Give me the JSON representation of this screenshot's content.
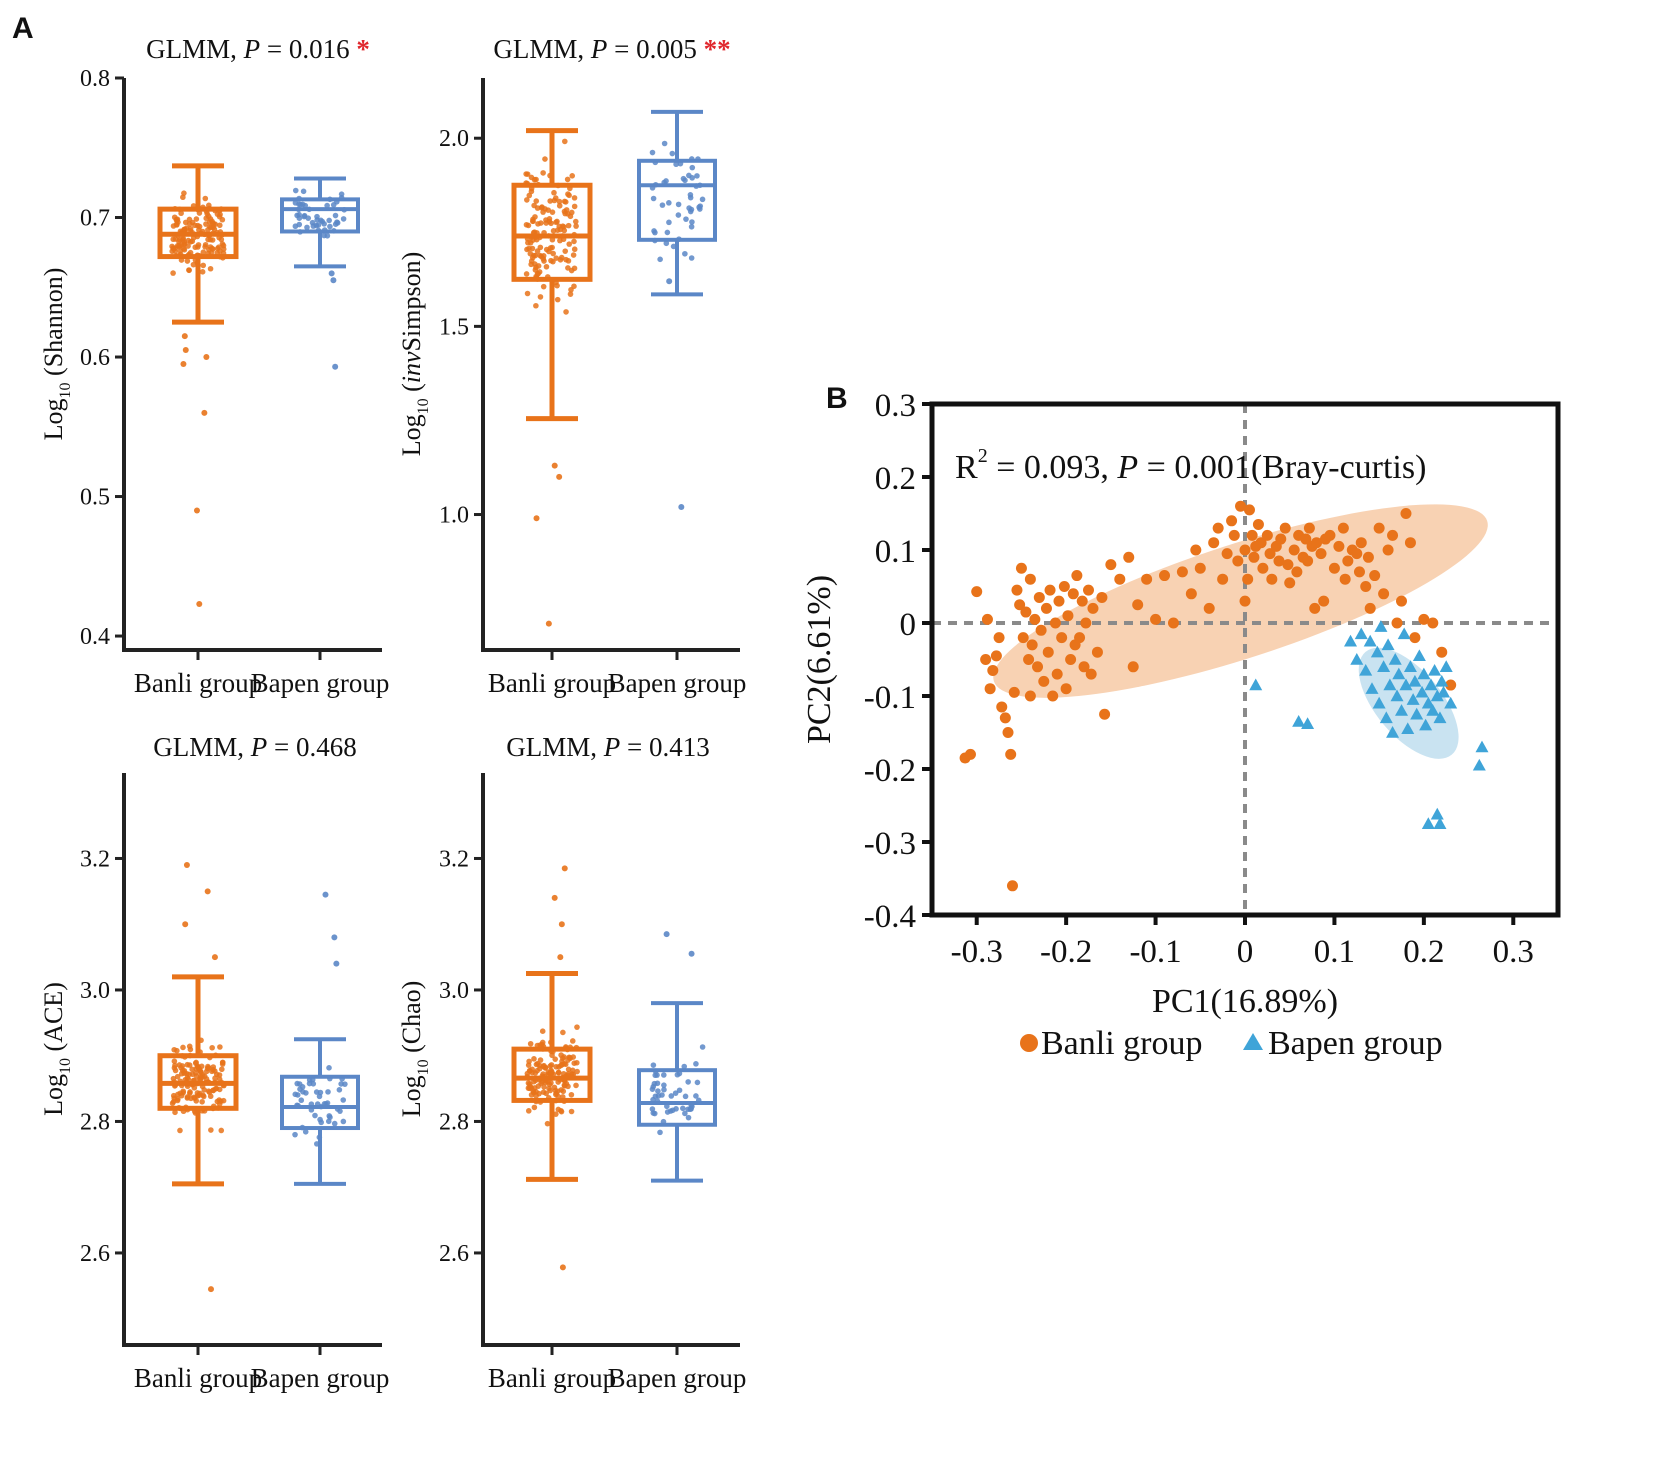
{
  "panel_labels": {
    "a": "A",
    "b": "B"
  },
  "colors": {
    "banli": "#e8731a",
    "bapen": "#5b87c7",
    "bapen_pcoa": "#3fa4d8",
    "sig_star": "#e0262c",
    "axis": "#222222",
    "ref_line": "#8a8a8a",
    "ellipse_banli": "#f6c7a0",
    "ellipse_bapen": "#bcdcee"
  },
  "chart_data": [
    {
      "type": "box",
      "id": "shannon",
      "title_prefix": "GLMM, ",
      "title_p": "P",
      "title_value": " = 0.016",
      "significance": "*",
      "ylabel_main": "Log",
      "ylabel_sub": "10",
      "ylabel_rest": " (Shannon)",
      "ylabel_italic": "",
      "ylabel_tail": "",
      "categories": [
        "Banli group",
        "Bapen group"
      ],
      "ylim": [
        0.39,
        0.8
      ],
      "yticks": [
        0.4,
        0.5,
        0.6,
        0.7,
        0.8
      ],
      "ytick_labels": [
        "0.4",
        "0.5",
        "0.6",
        "0.7",
        "0.8"
      ],
      "boxes": [
        {
          "group": "Banli group",
          "whisker_low": 0.625,
          "q1": 0.672,
          "median": 0.688,
          "q3": 0.706,
          "whisker_high": 0.737,
          "outliers": [
            0.49,
            0.423,
            0.56,
            0.595,
            0.6,
            0.605,
            0.615
          ]
        },
        {
          "group": "Bapen group",
          "whisker_low": 0.665,
          "q1": 0.69,
          "median": 0.706,
          "q3": 0.713,
          "whisker_high": 0.728,
          "outliers": [
            0.593,
            0.655,
            0.66
          ]
        }
      ]
    },
    {
      "type": "box",
      "id": "invsimpson",
      "title_prefix": "GLMM, ",
      "title_p": "P",
      "title_value": " = 0.005",
      "significance": "**",
      "ylabel_main": "Log",
      "ylabel_sub": "10",
      "ylabel_rest": " (",
      "ylabel_italic": "inv",
      "ylabel_tail": "Simpson)",
      "categories": [
        "Banli group",
        "Bapen group"
      ],
      "ylim": [
        0.64,
        2.16
      ],
      "yticks": [
        1.0,
        1.5,
        2.0
      ],
      "ytick_labels": [
        "1.0",
        "1.5",
        "2.0"
      ],
      "boxes": [
        {
          "group": "Banli group",
          "whisker_low": 1.255,
          "q1": 1.625,
          "median": 1.74,
          "q3": 1.875,
          "whisker_high": 2.02,
          "outliers": [
            0.71,
            0.99,
            1.1,
            1.13
          ]
        },
        {
          "group": "Bapen group",
          "whisker_low": 1.585,
          "q1": 1.73,
          "median": 1.875,
          "q3": 1.94,
          "whisker_high": 2.07,
          "outliers": [
            1.02,
            1.62
          ]
        }
      ]
    },
    {
      "type": "box",
      "id": "ace",
      "title_prefix": "GLMM, ",
      "title_p": "P",
      "title_value": " = 0.468",
      "significance": "",
      "ylabel_main": "Log",
      "ylabel_sub": "10",
      "ylabel_rest": " (ACE)",
      "ylabel_italic": "",
      "ylabel_tail": "",
      "categories": [
        "Banli group",
        "Bapen group"
      ],
      "ylim": [
        2.46,
        3.33
      ],
      "yticks": [
        2.6,
        2.8,
        3.0,
        3.2
      ],
      "ytick_labels": [
        "2.6",
        "2.8",
        "3.0",
        "3.2"
      ],
      "boxes": [
        {
          "group": "Banli group",
          "whisker_low": 2.705,
          "q1": 2.82,
          "median": 2.858,
          "q3": 2.9,
          "whisker_high": 3.02,
          "outliers": [
            2.545,
            3.05,
            3.1,
            3.15,
            3.19
          ]
        },
        {
          "group": "Bapen group",
          "whisker_low": 2.705,
          "q1": 2.79,
          "median": 2.822,
          "q3": 2.868,
          "whisker_high": 2.925,
          "outliers": [
            3.04,
            3.08,
            3.145
          ]
        }
      ]
    },
    {
      "type": "box",
      "id": "chao",
      "title_prefix": "GLMM, ",
      "title_p": "P",
      "title_value": " = 0.413",
      "significance": "",
      "ylabel_main": "Log",
      "ylabel_sub": "10",
      "ylabel_rest": " (Chao)",
      "ylabel_italic": "",
      "ylabel_tail": "",
      "categories": [
        "Banli group",
        "Bapen group"
      ],
      "ylim": [
        2.46,
        3.33
      ],
      "yticks": [
        2.6,
        2.8,
        3.0,
        3.2
      ],
      "ytick_labels": [
        "2.6",
        "2.8",
        "3.0",
        "3.2"
      ],
      "boxes": [
        {
          "group": "Banli group",
          "whisker_low": 2.712,
          "q1": 2.832,
          "median": 2.866,
          "q3": 2.91,
          "whisker_high": 3.025,
          "outliers": [
            2.578,
            3.05,
            3.1,
            3.14,
            3.185
          ]
        },
        {
          "group": "Bapen group",
          "whisker_low": 2.71,
          "q1": 2.795,
          "median": 2.828,
          "q3": 2.878,
          "whisker_high": 2.98,
          "outliers": [
            3.055,
            3.085
          ]
        }
      ]
    },
    {
      "type": "scatter",
      "id": "pcoa",
      "annotation_r": "R",
      "annotation_r_sup": "2",
      "annotation_mid": " = 0.093, ",
      "annotation_p": "P",
      "annotation_tail": " = 0.001(Bray-curtis)",
      "xlabel": "PC1(16.89%)",
      "ylabel": "PC2(6.61%)",
      "xlim": [
        -0.35,
        0.35
      ],
      "ylim": [
        -0.4,
        0.3
      ],
      "xticks": [
        -0.3,
        -0.2,
        -0.1,
        0,
        0.1,
        0.2,
        0.3
      ],
      "xtick_labels": [
        "-0.3",
        "-0.2",
        "-0.1",
        "0",
        "0.1",
        "0.2",
        "0.3"
      ],
      "yticks": [
        -0.4,
        -0.3,
        -0.2,
        -0.1,
        0,
        0.1,
        0.2,
        0.3
      ],
      "ytick_labels": [
        "-0.4",
        "-0.3",
        "-0.2",
        "-0.1",
        "0",
        "0.1",
        "0.2",
        "0.3"
      ],
      "legend": [
        {
          "marker": "circle",
          "label": "Banli group"
        },
        {
          "marker": "triangle",
          "label": "Bapen group"
        }
      ],
      "ellipses": [
        {
          "group": "Banli group",
          "cx": -0.005,
          "cy": 0.03,
          "rx": 0.29,
          "ry": 0.078,
          "angle_deg": 18
        },
        {
          "group": "Bapen group",
          "cx": 0.183,
          "cy": -0.11,
          "rx": 0.075,
          "ry": 0.045,
          "angle_deg": -50
        }
      ],
      "series": [
        {
          "name": "Banli group",
          "marker": "circle",
          "points": [
            [
              -0.313,
              -0.185
            ],
            [
              -0.307,
              -0.18
            ],
            [
              -0.3,
              0.043
            ],
            [
              -0.288,
              0.005
            ],
            [
              -0.29,
              -0.05
            ],
            [
              -0.285,
              -0.09
            ],
            [
              -0.282,
              -0.065
            ],
            [
              -0.278,
              -0.045
            ],
            [
              -0.275,
              -0.02
            ],
            [
              -0.272,
              -0.115
            ],
            [
              -0.268,
              -0.13
            ],
            [
              -0.265,
              -0.15
            ],
            [
              -0.262,
              -0.18
            ],
            [
              -0.26,
              -0.36
            ],
            [
              -0.258,
              -0.095
            ],
            [
              -0.255,
              0.045
            ],
            [
              -0.252,
              0.025
            ],
            [
              -0.25,
              0.075
            ],
            [
              -0.248,
              -0.02
            ],
            [
              -0.245,
              0.015
            ],
            [
              -0.242,
              -0.05
            ],
            [
              -0.24,
              0.06
            ],
            [
              -0.238,
              -0.03
            ],
            [
              -0.235,
              0.005
            ],
            [
              -0.232,
              -0.06
            ],
            [
              -0.23,
              0.035
            ],
            [
              -0.228,
              -0.01
            ],
            [
              -0.225,
              -0.08
            ],
            [
              -0.222,
              0.02
            ],
            [
              -0.22,
              -0.04
            ],
            [
              -0.218,
              0.045
            ],
            [
              -0.215,
              -0.1
            ],
            [
              -0.212,
              0.0
            ],
            [
              -0.21,
              -0.07
            ],
            [
              -0.208,
              0.03
            ],
            [
              -0.205,
              -0.02
            ],
            [
              -0.202,
              0.05
            ],
            [
              -0.2,
              -0.09
            ],
            [
              -0.198,
              0.01
            ],
            [
              -0.195,
              -0.05
            ],
            [
              -0.192,
              0.04
            ],
            [
              -0.19,
              -0.03
            ],
            [
              -0.188,
              0.065
            ],
            [
              -0.185,
              -0.02
            ],
            [
              -0.182,
              0.03
            ],
            [
              -0.18,
              -0.06
            ],
            [
              -0.178,
              0.0
            ],
            [
              -0.175,
              0.045
            ],
            [
              -0.172,
              -0.07
            ],
            [
              -0.17,
              0.02
            ],
            [
              -0.165,
              -0.04
            ],
            [
              -0.16,
              0.035
            ],
            [
              -0.157,
              -0.125
            ],
            [
              -0.15,
              0.08
            ],
            [
              -0.14,
              0.06
            ],
            [
              -0.13,
              0.09
            ],
            [
              -0.125,
              -0.06
            ],
            [
              -0.12,
              0.025
            ],
            [
              -0.11,
              0.06
            ],
            [
              -0.1,
              0.005
            ],
            [
              -0.09,
              0.065
            ],
            [
              -0.08,
              0.0
            ],
            [
              -0.07,
              0.07
            ],
            [
              -0.06,
              0.04
            ],
            [
              -0.055,
              0.1
            ],
            [
              -0.05,
              0.075
            ],
            [
              -0.04,
              0.02
            ],
            [
              -0.035,
              0.11
            ],
            [
              -0.03,
              0.13
            ],
            [
              -0.025,
              0.06
            ],
            [
              -0.02,
              0.095
            ],
            [
              -0.015,
              0.14
            ],
            [
              -0.012,
              0.12
            ],
            [
              -0.008,
              0.085
            ],
            [
              -0.005,
              0.16
            ],
            [
              0.0,
              0.1
            ],
            [
              0.0,
              0.03
            ],
            [
              0.003,
              0.06
            ],
            [
              0.005,
              0.155
            ],
            [
              0.008,
              0.12
            ],
            [
              0.01,
              0.09
            ],
            [
              0.012,
              0.105
            ],
            [
              0.015,
              0.135
            ],
            [
              0.018,
              0.11
            ],
            [
              0.02,
              0.075
            ],
            [
              0.025,
              0.12
            ],
            [
              0.028,
              0.095
            ],
            [
              0.03,
              0.06
            ],
            [
              0.035,
              0.105
            ],
            [
              0.038,
              0.085
            ],
            [
              0.04,
              0.115
            ],
            [
              0.045,
              0.13
            ],
            [
              0.048,
              0.08
            ],
            [
              0.05,
              0.055
            ],
            [
              0.055,
              0.1
            ],
            [
              0.058,
              0.07
            ],
            [
              0.06,
              0.12
            ],
            [
              0.065,
              0.09
            ],
            [
              0.068,
              0.115
            ],
            [
              0.07,
              0.085
            ],
            [
              0.072,
              0.13
            ],
            [
              0.075,
              0.105
            ],
            [
              0.078,
              0.02
            ],
            [
              0.08,
              0.11
            ],
            [
              0.085,
              0.095
            ],
            [
              0.088,
              0.03
            ],
            [
              0.09,
              0.115
            ],
            [
              0.095,
              0.12
            ],
            [
              0.1,
              0.075
            ],
            [
              0.105,
              0.105
            ],
            [
              0.11,
              0.13
            ],
            [
              0.112,
              0.06
            ],
            [
              0.115,
              0.085
            ],
            [
              0.12,
              0.1
            ],
            [
              0.125,
              0.095
            ],
            [
              0.128,
              0.07
            ],
            [
              0.13,
              0.11
            ],
            [
              0.135,
              0.05
            ],
            [
              0.138,
              0.09
            ],
            [
              0.14,
              0.02
            ],
            [
              0.145,
              0.065
            ],
            [
              0.15,
              0.13
            ],
            [
              0.155,
              0.04
            ],
            [
              0.16,
              0.1
            ],
            [
              0.165,
              0.12
            ],
            [
              0.17,
              0.0
            ],
            [
              0.175,
              0.03
            ],
            [
              0.18,
              0.15
            ],
            [
              0.185,
              0.11
            ],
            [
              0.19,
              -0.02
            ],
            [
              0.2,
              0.005
            ],
            [
              0.21,
              0.0
            ],
            [
              0.22,
              -0.04
            ],
            [
              0.23,
              -0.085
            ],
            [
              -0.24,
              -0.1
            ]
          ]
        },
        {
          "name": "Bapen group",
          "marker": "triangle",
          "points": [
            [
              0.012,
              -0.085
            ],
            [
              0.06,
              -0.135
            ],
            [
              0.07,
              -0.138
            ],
            [
              0.118,
              -0.025
            ],
            [
              0.125,
              -0.05
            ],
            [
              0.13,
              -0.015
            ],
            [
              0.135,
              -0.065
            ],
            [
              0.14,
              -0.025
            ],
            [
              0.142,
              -0.09
            ],
            [
              0.148,
              -0.04
            ],
            [
              0.15,
              -0.11
            ],
            [
              0.152,
              -0.005
            ],
            [
              0.155,
              -0.06
            ],
            [
              0.158,
              -0.13
            ],
            [
              0.16,
              -0.03
            ],
            [
              0.162,
              -0.085
            ],
            [
              0.165,
              -0.15
            ],
            [
              0.168,
              -0.05
            ],
            [
              0.17,
              -0.1
            ],
            [
              0.172,
              -0.07
            ],
            [
              0.175,
              -0.12
            ],
            [
              0.178,
              -0.015
            ],
            [
              0.18,
              -0.085
            ],
            [
              0.182,
              -0.145
            ],
            [
              0.185,
              -0.06
            ],
            [
              0.188,
              -0.105
            ],
            [
              0.19,
              -0.08
            ],
            [
              0.192,
              -0.125
            ],
            [
              0.195,
              -0.045
            ],
            [
              0.198,
              -0.095
            ],
            [
              0.2,
              -0.07
            ],
            [
              0.202,
              -0.14
            ],
            [
              0.205,
              -0.11
            ],
            [
              0.208,
              -0.085
            ],
            [
              0.21,
              -0.12
            ],
            [
              0.212,
              -0.065
            ],
            [
              0.215,
              -0.1
            ],
            [
              0.218,
              -0.13
            ],
            [
              0.22,
              -0.08
            ],
            [
              0.222,
              -0.095
            ],
            [
              0.225,
              -0.06
            ],
            [
              0.23,
              -0.11
            ],
            [
              0.265,
              -0.17
            ],
            [
              0.262,
              -0.195
            ],
            [
              0.205,
              -0.275
            ],
            [
              0.215,
              -0.262
            ],
            [
              0.218,
              -0.275
            ]
          ]
        }
      ]
    }
  ]
}
